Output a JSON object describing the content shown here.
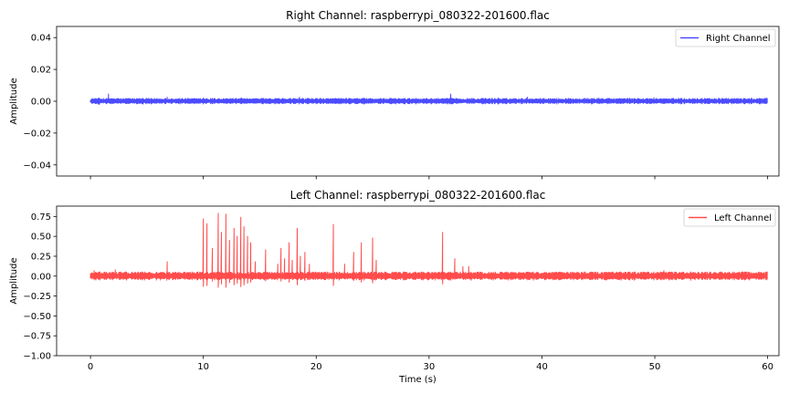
{
  "chart_data": [
    {
      "type": "line",
      "title": "Right Channel: raspberrypi_080322-201600.flac",
      "xlabel": "",
      "ylabel": "Amplitude",
      "xlim": [
        -3,
        61
      ],
      "ylim": [
        -0.047,
        0.047
      ],
      "yticks": [
        0.04,
        0.02,
        0.0,
        -0.02,
        -0.04
      ],
      "ytick_labels": [
        "0.04",
        "0.02",
        "0.00",
        "−0.02",
        "−0.04"
      ],
      "xticks": [
        0,
        10,
        20,
        30,
        40,
        50,
        60
      ],
      "xtick_labels": [],
      "grid": false,
      "legend_placement": "top-right",
      "series": [
        {
          "name": "Right Channel",
          "color": "#4b4bff",
          "duration_s": 60,
          "noise_amplitude": 0.0012,
          "spikes": [
            {
              "t": 0.7,
              "amp": 0.002
            },
            {
              "t": 1.6,
              "amp": 0.0045
            },
            {
              "t": 6.8,
              "amp": 0.0025
            },
            {
              "t": 10.0,
              "amp": 0.002
            },
            {
              "t": 13.4,
              "amp": 0.002
            },
            {
              "t": 18.5,
              "amp": 0.0025
            },
            {
              "t": 24.2,
              "amp": 0.002
            },
            {
              "t": 26.5,
              "amp": 0.0018
            },
            {
              "t": 31.9,
              "amp": 0.0045
            },
            {
              "t": 36.1,
              "amp": 0.002
            },
            {
              "t": 38.7,
              "amp": 0.0025
            },
            {
              "t": 45.0,
              "amp": 0.002
            },
            {
              "t": 49.9,
              "amp": 0.0022
            },
            {
              "t": 54.4,
              "amp": 0.0018
            }
          ]
        }
      ]
    },
    {
      "type": "line",
      "title": "Left Channel: raspberrypi_080322-201600.flac",
      "xlabel": "Time (s)",
      "ylabel": "Amplitude",
      "xlim": [
        -3,
        61
      ],
      "ylim": [
        -1.0,
        0.88
      ],
      "yticks": [
        0.75,
        0.5,
        0.25,
        0.0,
        -0.25,
        -0.5,
        -0.75,
        -1.0
      ],
      "ytick_labels": [
        "0.75",
        "0.50",
        "0.25",
        "0.00",
        "−0.25",
        "−0.50",
        "−0.75",
        "−1.00"
      ],
      "xticks": [
        0,
        10,
        20,
        30,
        40,
        50,
        60
      ],
      "xtick_labels": [
        "0",
        "10",
        "20",
        "30",
        "40",
        "50",
        "60"
      ],
      "grid": false,
      "legend_placement": "top-right",
      "series": [
        {
          "name": "Left Channel",
          "color": "#ff4b4b",
          "duration_s": 60,
          "noise_amplitude": 0.035,
          "spikes": [
            {
              "t": 0.3,
              "amp": 0.07
            },
            {
              "t": 2.2,
              "amp": 0.08
            },
            {
              "t": 6.8,
              "amp": 0.18
            },
            {
              "t": 10.0,
              "amp": 0.72
            },
            {
              "t": 10.3,
              "amp": 0.66
            },
            {
              "t": 10.8,
              "amp": 0.35
            },
            {
              "t": 11.3,
              "amp": 0.79
            },
            {
              "t": 11.6,
              "amp": 0.55
            },
            {
              "t": 12.0,
              "amp": 0.78
            },
            {
              "t": 12.3,
              "amp": 0.45
            },
            {
              "t": 12.7,
              "amp": 0.6
            },
            {
              "t": 13.0,
              "amp": 0.5
            },
            {
              "t": 13.3,
              "amp": 0.74
            },
            {
              "t": 13.6,
              "amp": 0.62
            },
            {
              "t": 13.9,
              "amp": 0.5
            },
            {
              "t": 14.2,
              "amp": 0.42
            },
            {
              "t": 14.6,
              "amp": 0.18
            },
            {
              "t": 15.5,
              "amp": 0.33
            },
            {
              "t": 16.6,
              "amp": 0.15
            },
            {
              "t": 16.9,
              "amp": 0.35
            },
            {
              "t": 17.2,
              "amp": 0.22
            },
            {
              "t": 17.6,
              "amp": 0.42
            },
            {
              "t": 17.9,
              "amp": 0.2
            },
            {
              "t": 18.3,
              "amp": 0.6
            },
            {
              "t": 18.6,
              "amp": 0.25
            },
            {
              "t": 19.0,
              "amp": 0.3
            },
            {
              "t": 19.4,
              "amp": 0.15
            },
            {
              "t": 21.5,
              "amp": 0.65
            },
            {
              "t": 22.5,
              "amp": 0.15
            },
            {
              "t": 23.3,
              "amp": 0.3
            },
            {
              "t": 24.0,
              "amp": 0.42
            },
            {
              "t": 25.0,
              "amp": 0.48
            },
            {
              "t": 25.3,
              "amp": 0.2
            },
            {
              "t": 31.2,
              "amp": 0.55
            },
            {
              "t": 32.3,
              "amp": 0.22
            },
            {
              "t": 33.0,
              "amp": 0.12
            },
            {
              "t": 33.5,
              "amp": 0.12
            },
            {
              "t": 50.8,
              "amp": 0.07
            }
          ]
        }
      ]
    }
  ]
}
